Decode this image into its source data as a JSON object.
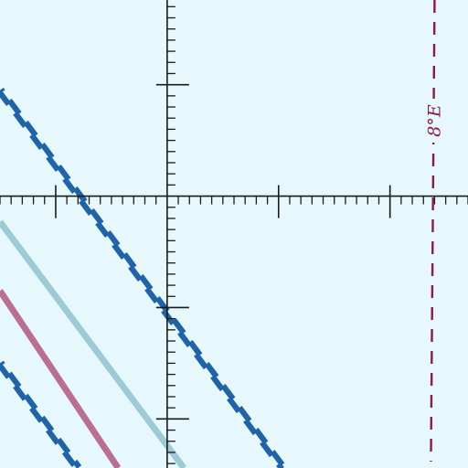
{
  "chart_data": {
    "type": "line",
    "title": "",
    "xlabel": "",
    "ylabel": "",
    "xlim": [
      -1.5,
      2.7
    ],
    "ylim": [
      -2.44,
      1.76
    ],
    "grid": false,
    "axes": {
      "x_major_step": 1,
      "x_minor_step": 0.1,
      "y_major_step": 1,
      "y_minor_step": 0.1,
      "color": "#1a1a1a"
    },
    "series": [
      {
        "role": "curve-a",
        "style": "double-dashed",
        "color": "#1f64a8",
        "x": [
          -1.5,
          1.04
        ],
        "y": [
          0.95,
          -2.44
        ]
      },
      {
        "role": "curve-b",
        "style": "solid",
        "color": "#9ccbd6",
        "x": [
          -1.5,
          0.15
        ],
        "y": [
          -0.23,
          -2.44
        ]
      },
      {
        "role": "curve-c",
        "style": "solid",
        "color": "#b86f93",
        "x": [
          -1.5,
          -0.44
        ],
        "y": [
          -0.85,
          -2.44
        ]
      },
      {
        "role": "curve-d",
        "style": "double-dashed",
        "color": "#1f64a8",
        "x": [
          -1.5,
          -0.8
        ],
        "y": [
          -1.5,
          -2.44
        ]
      }
    ],
    "annotations": [
      {
        "text": "8°E",
        "x": 2.4,
        "color": "#8b1a4f",
        "rotation": 180,
        "style": "dashed-vertical"
      }
    ]
  }
}
